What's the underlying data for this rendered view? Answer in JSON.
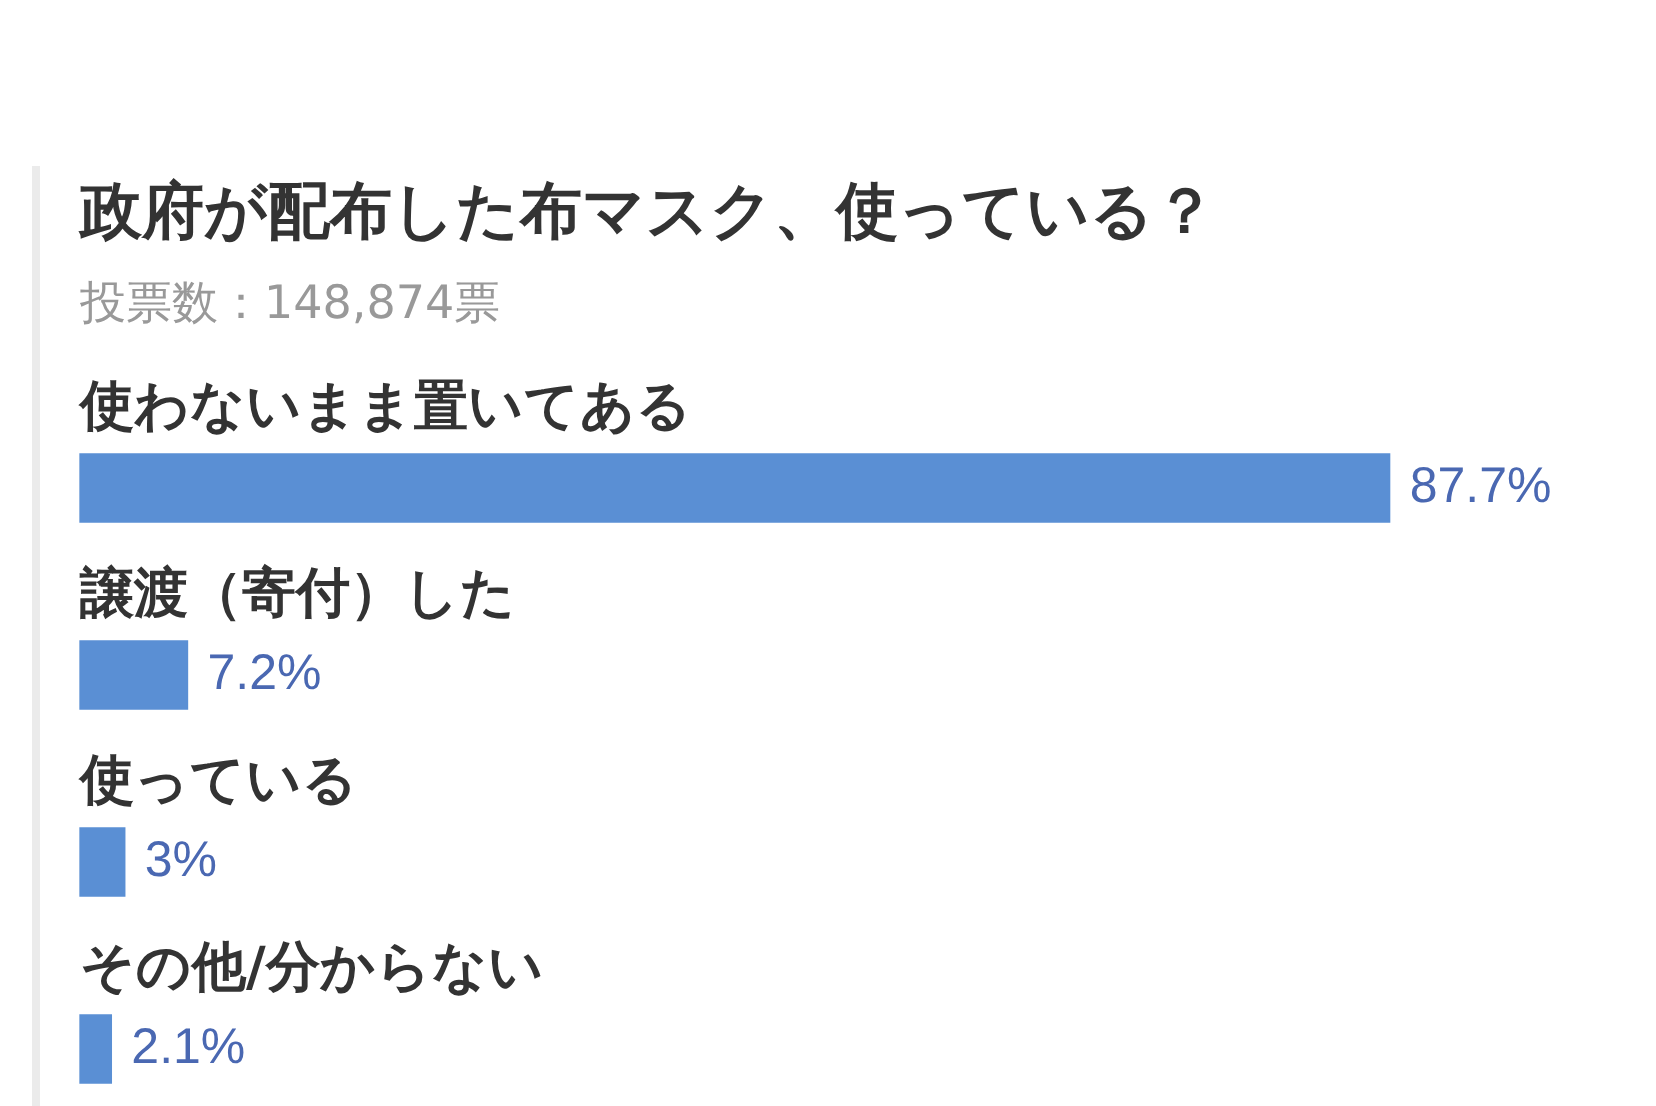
{
  "chart_data": {
    "type": "bar",
    "orientation": "horizontal",
    "title": "政府が配布した布マスク、使っている？",
    "subtitle": "投票数：148,874票",
    "categories": [
      "使わないまま置いてある",
      "譲渡（寄付）した",
      "使っている",
      "その他/分からない"
    ],
    "values": [
      87.7,
      7.2,
      3,
      2.1
    ],
    "value_labels": [
      "87.7%",
      "7.2%",
      "3%",
      "2.1%"
    ],
    "color": "#5a8fd4",
    "tick_labels": "y"
  }
}
